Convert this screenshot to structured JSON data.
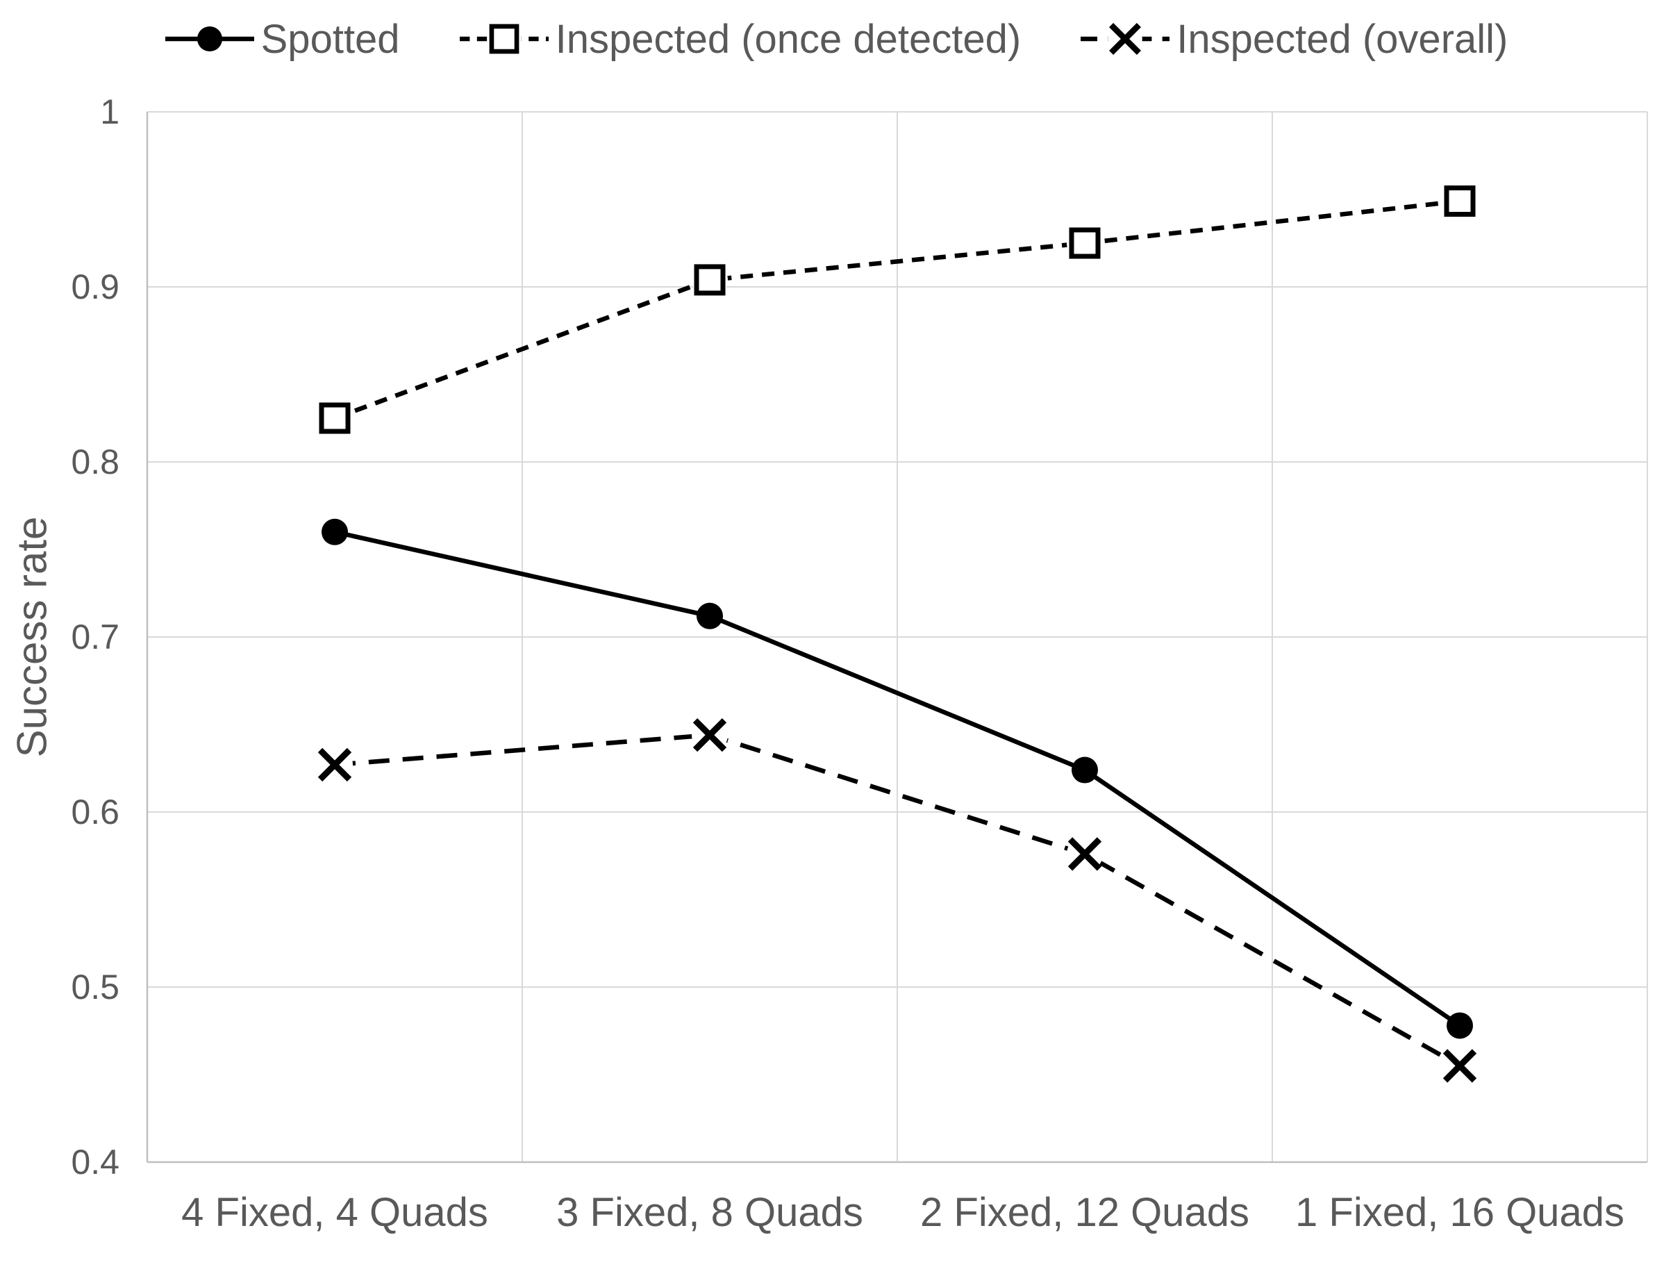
{
  "chart_data": {
    "type": "line",
    "title": "",
    "xlabel": "",
    "ylabel": "Success rate",
    "categories": [
      "4 Fixed, 4 Quads",
      "3 Fixed, 8 Quads",
      "2 Fixed, 12 Quads",
      "1 Fixed, 16 Quads"
    ],
    "ylim": [
      0.4,
      1.0
    ],
    "y_ticks": [
      {
        "v": 1.0,
        "label": "1"
      },
      {
        "v": 0.9,
        "label": "0.9"
      },
      {
        "v": 0.8,
        "label": "0.8"
      },
      {
        "v": 0.7,
        "label": "0.7"
      },
      {
        "v": 0.6,
        "label": "0.6"
      },
      {
        "v": 0.5,
        "label": "0.5"
      },
      {
        "v": 0.4,
        "label": "0.4"
      }
    ],
    "grid": "both",
    "legend_position": "top",
    "series": [
      {
        "name": "Spotted",
        "marker": "circle-filled",
        "line": "solid",
        "values": [
          0.76,
          0.712,
          0.624,
          0.478
        ]
      },
      {
        "name": "Inspected (once detected)",
        "marker": "square-open",
        "line": "dashed-short",
        "values": [
          0.825,
          0.904,
          0.925,
          0.949
        ]
      },
      {
        "name": "Inspected (overall)",
        "marker": "x",
        "line": "dashed-long",
        "values": [
          0.627,
          0.644,
          0.576,
          0.455
        ]
      }
    ],
    "colors": {
      "series": "#000000",
      "grid": "#D9D9D9",
      "axis": "#BFBFBF",
      "text": "#595959"
    }
  }
}
